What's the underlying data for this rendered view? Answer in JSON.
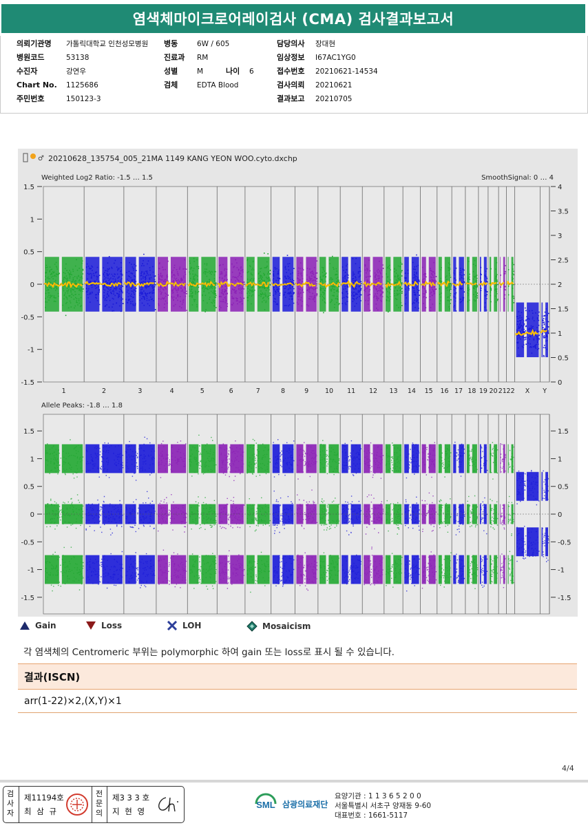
{
  "header": {
    "title": "염색체마이크로어레이검사 (CMA) 검사결과보고서"
  },
  "patient_info": {
    "col1": [
      {
        "label": "의뢰기관명",
        "value": "가톨릭대학교 인천성모병원"
      },
      {
        "label": "병원코드",
        "value": "53138"
      },
      {
        "label": "수진자",
        "value": "강연우"
      },
      {
        "label": "Chart No.",
        "value": "1125686"
      },
      {
        "label": "주민번호",
        "value": "150123-3"
      }
    ],
    "col2": [
      {
        "label": "병동",
        "value": "6W / 605"
      },
      {
        "label": "진료과",
        "value": "RM"
      },
      {
        "label": "성별",
        "value": "M"
      },
      {
        "label": "검체",
        "value": "EDTA Blood"
      }
    ],
    "age": {
      "label": "나이",
      "value": "6"
    },
    "col3": [
      {
        "label": "담당의사",
        "value": "장대현"
      },
      {
        "label": "임상정보",
        "value": "I67AC1YG0"
      },
      {
        "label": "접수번호",
        "value": "20210621-14534"
      },
      {
        "label": "검사의뢰",
        "value": "20210621"
      },
      {
        "label": "결과보고",
        "value": "20210705"
      }
    ]
  },
  "chart_data": {
    "type": "scatter",
    "file_name": "20210628_135754_005_21MA 1149 KANG YEON WOO.cyto.dxchp",
    "chromosomes": [
      "1",
      "2",
      "3",
      "4",
      "5",
      "6",
      "7",
      "8",
      "9",
      "10",
      "11",
      "12",
      "13",
      "14",
      "15",
      "16",
      "17",
      "18",
      "19",
      "20",
      "21",
      "22",
      "X",
      "Y"
    ],
    "relative_sizes": [
      249,
      243,
      198,
      191,
      181,
      171,
      159,
      146,
      141,
      136,
      135,
      133,
      115,
      107,
      102,
      90,
      83,
      80,
      59,
      64,
      48,
      51,
      155,
      57
    ],
    "colors": [
      "#22a832",
      "#1a1ad8",
      "#8a1fb5",
      "#ffc000"
    ],
    "top_panel": {
      "label": "Weighted Log2 Ratio: -1.5 … 1.5",
      "right_label": "SmoothSignal: 0 … 4",
      "left_ticks": [
        "1.5",
        "1",
        "0.5",
        "0",
        "-0.5",
        "-1",
        "-1.5"
      ],
      "left_values": [
        1.5,
        1,
        0.5,
        0,
        -0.5,
        -1,
        -1.5
      ],
      "right_ticks": [
        "4",
        "3.5",
        "3",
        "2.5",
        "2",
        "1.5",
        "1",
        "0.5",
        "0"
      ],
      "right_values": [
        4,
        3.5,
        3,
        2.5,
        2,
        1.5,
        1,
        0.5,
        0
      ],
      "autosome_log2": 0,
      "x_log2": -0.7,
      "autosome_smooth": 2,
      "x_smooth": 1
    },
    "bottom_panel": {
      "label": "Allele Peaks: -1.8 … 1.8",
      "left_ticks": [
        "1.5",
        "1",
        "0.5",
        "0",
        "-0.5",
        "-1",
        "-1.5"
      ],
      "left_values": [
        1.5,
        1,
        0.5,
        0,
        -0.5,
        -1,
        -1.5
      ],
      "right_ticks": [
        "1.5",
        "1",
        "0.5",
        "0",
        "-0.5",
        "-1",
        "-1.5"
      ],
      "right_values": [
        1.5,
        1,
        0.5,
        0,
        -0.5,
        -1,
        -1.5
      ],
      "autosome_peaks": [
        1,
        0,
        -1
      ],
      "x_peaks": [
        0.5,
        -0.5
      ]
    }
  },
  "legend": [
    {
      "icon": "gain-triangle-icon",
      "label": "Gain",
      "color": "#1d2a6b"
    },
    {
      "icon": "loss-triangle-icon",
      "label": "Loss",
      "color": "#8b1a1a"
    },
    {
      "icon": "loh-x-icon",
      "label": "LOH",
      "color": "#2d3f9a"
    },
    {
      "icon": "mosaicism-diamond-icon",
      "label": "Mosaicism",
      "color": "#1f7a6a"
    }
  ],
  "note": "각 염색체의 Centromeric 부위는 polymorphic 하여 gain 또는 loss로 표시 될 수 있습니다.",
  "result": {
    "heading": "결과(ISCN)",
    "value": "arr(1-22)×2,(X,Y)×1"
  },
  "page_number": "4/4",
  "footer": {
    "tester_label": "검사자",
    "tester_license": "제11194호",
    "tester_name": "최 삼 규",
    "specialist_label": "전문의",
    "specialist_license": "제3 3 3 호",
    "specialist_name": "지 현 영",
    "org_logo": "SML",
    "org_name": "삼광의료재단",
    "org_code": "요양기관 : 1 1 3 6 5 2 0 0",
    "org_address": "서울특별시 서초구 양재동 9-60",
    "org_phone": "대표번호 : 1661-5117"
  }
}
